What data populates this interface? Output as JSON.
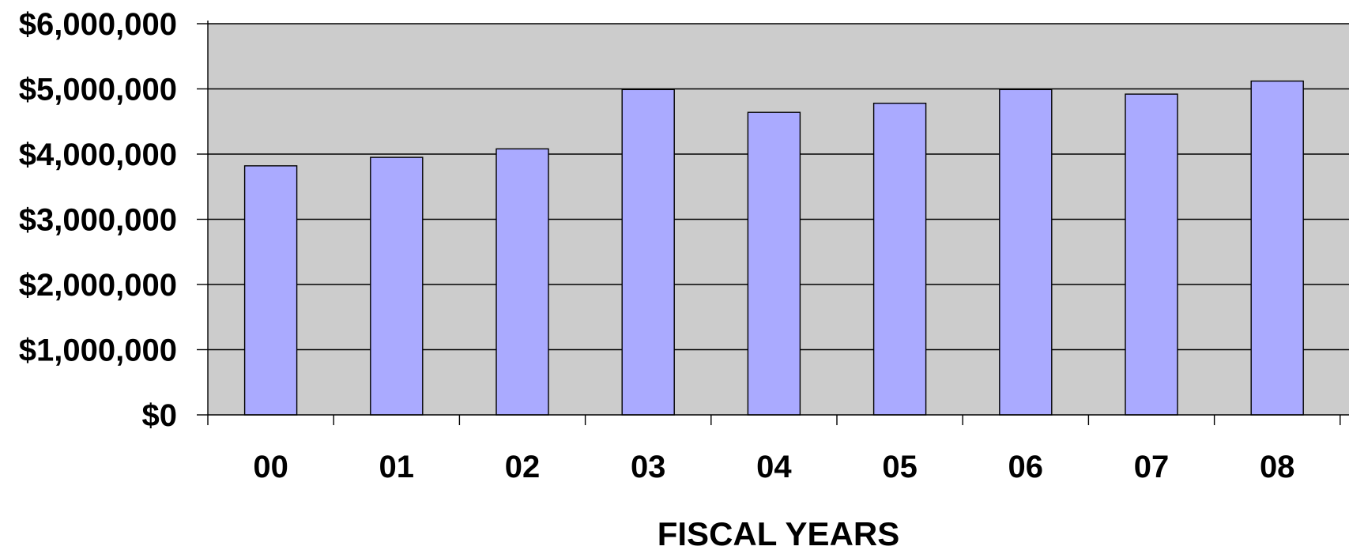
{
  "chart_data": {
    "type": "bar",
    "title": "",
    "xlabel": "FISCAL YEARS",
    "ylabel": "",
    "categories": [
      "00",
      "01",
      "02",
      "03",
      "04",
      "05",
      "06",
      "07",
      "08"
    ],
    "values": [
      3820000,
      3950000,
      4080000,
      4990000,
      4640000,
      4780000,
      4990000,
      4920000,
      5120000
    ],
    "ylim": [
      0,
      6000000
    ],
    "y_ticks": [
      0,
      1000000,
      2000000,
      3000000,
      4000000,
      5000000,
      6000000
    ],
    "y_tick_labels": [
      "$0",
      "$1,000,000",
      "$2,000,000",
      "$3,000,000",
      "$4,000,000",
      "$5,000,000",
      "$6,000,000"
    ],
    "grid": true,
    "legend": "none",
    "colors": {
      "bar_fill": "#aaaaff",
      "plot_background": "#cccccc",
      "grid": "#000000"
    }
  }
}
